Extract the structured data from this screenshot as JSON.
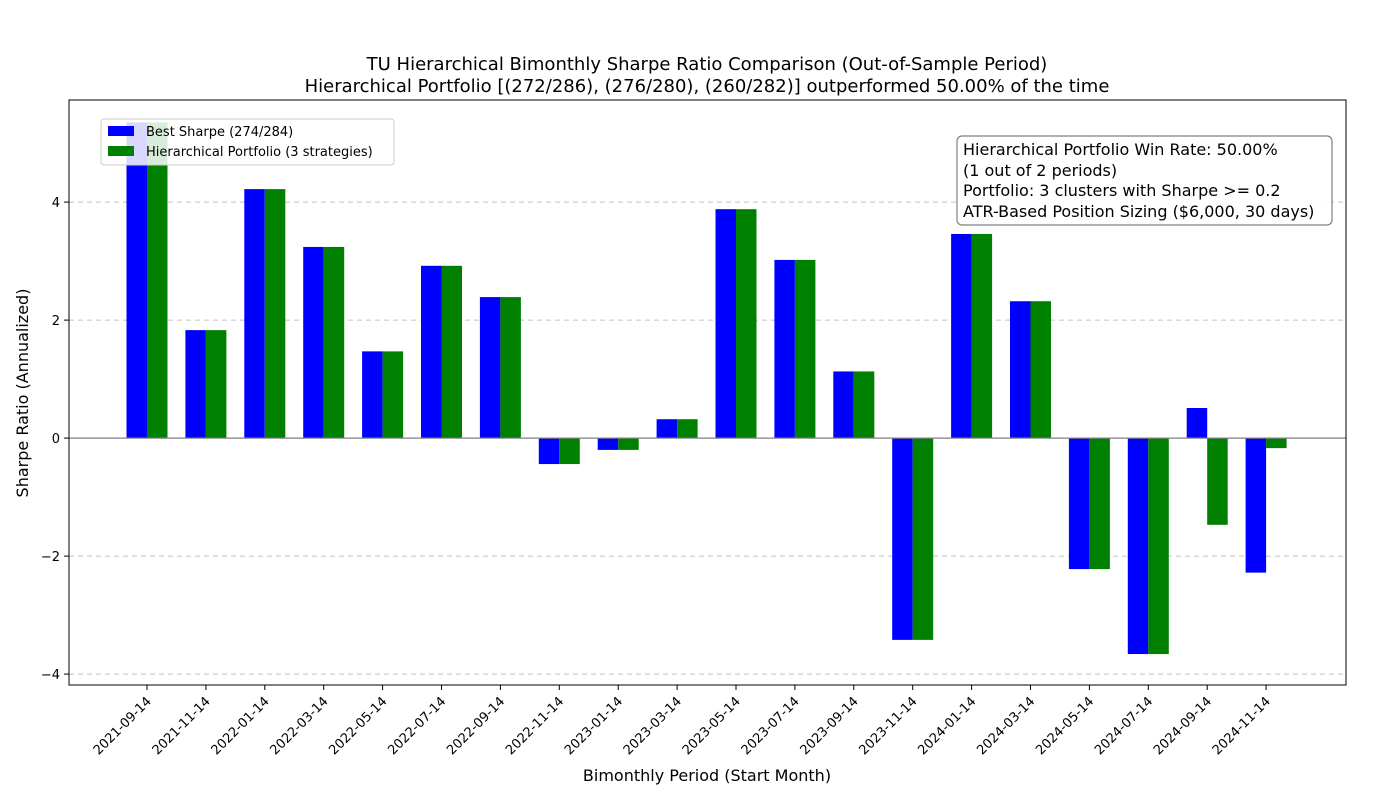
{
  "chart_data": {
    "type": "bar",
    "title": "TU Hierarchical Bimonthly Sharpe Ratio Comparison (Out-of-Sample Period)",
    "subtitle": "Hierarchical Portfolio [(272/286), (276/280), (260/282)] outperformed 50.00% of the time",
    "xlabel": "Bimonthly Period (Start Month)",
    "ylabel": "Sharpe Ratio (Annualized)",
    "ylim": [
      -4.1,
      5.8
    ],
    "yticks": [
      -4,
      -2,
      0,
      2,
      4
    ],
    "ytick_labels": [
      "−4",
      "−2",
      "0",
      "2",
      "4"
    ],
    "grid": true,
    "legend_position": "upper-left",
    "categories": [
      "2021-09-14",
      "2021-11-14",
      "2022-01-14",
      "2022-03-14",
      "2022-05-14",
      "2022-07-14",
      "2022-09-14",
      "2022-11-14",
      "2023-01-14",
      "2023-03-14",
      "2023-05-14",
      "2023-07-14",
      "2023-09-14",
      "2023-11-14",
      "2024-01-14",
      "2024-03-14",
      "2024-05-14",
      "2024-07-14",
      "2024-09-14",
      "2024-11-14"
    ],
    "series": [
      {
        "name": "Best Sharpe (274/284)",
        "color": "#0000ff",
        "values": [
          5.35,
          1.83,
          4.22,
          3.24,
          1.47,
          2.92,
          2.39,
          -0.44,
          -0.2,
          0.32,
          3.88,
          3.02,
          1.13,
          -3.42,
          3.46,
          2.32,
          -2.22,
          -3.66,
          0.51,
          -2.28
        ]
      },
      {
        "name": "Hierarchical Portfolio (3 strategies)",
        "color": "#008000",
        "values": [
          5.35,
          1.83,
          4.22,
          3.24,
          1.47,
          2.92,
          2.39,
          -0.44,
          -0.2,
          0.32,
          3.88,
          3.02,
          1.13,
          -3.42,
          3.46,
          2.32,
          -2.22,
          -3.66,
          -1.47,
          -0.17
        ]
      }
    ],
    "annotation_lines": [
      "Hierarchical Portfolio Win Rate: 50.00%",
      "(1 out of 2 periods)",
      "Portfolio: 3 clusters with Sharpe >= 0.2",
      "ATR-Based Position Sizing ($6,000, 30 days)"
    ]
  }
}
